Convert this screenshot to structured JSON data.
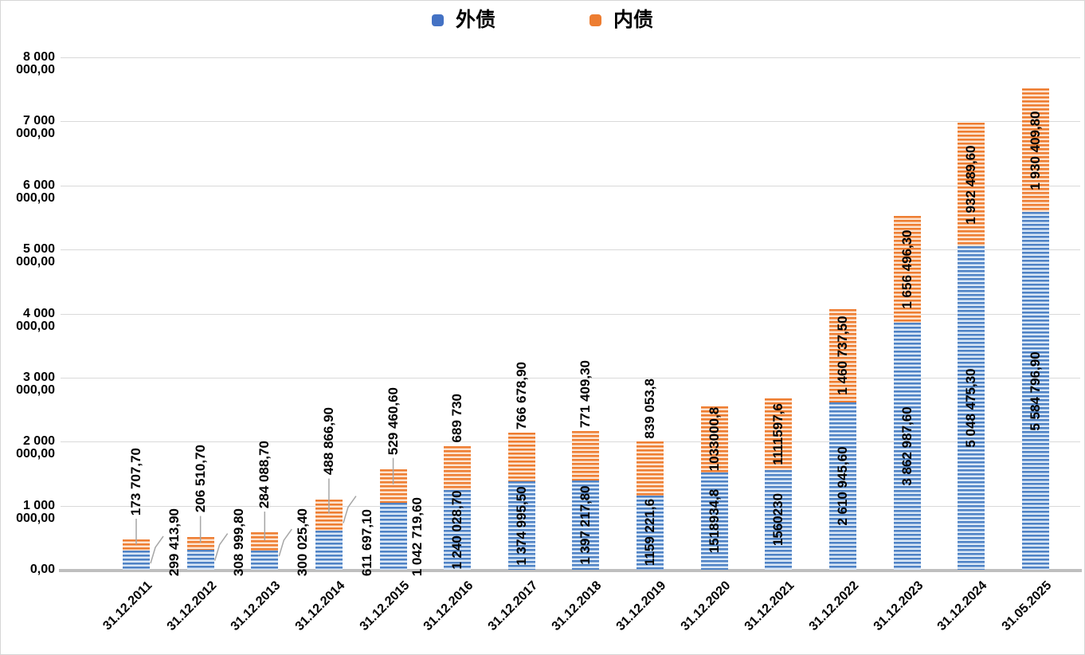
{
  "chart_data": {
    "type": "bar",
    "stacked": true,
    "title": "",
    "legend_position": "top",
    "grid": true,
    "categories": [
      "31.12.2011",
      "31.12.2012",
      "31.12.2013",
      "31.12.2014",
      "31.12.2015",
      "31.12.2016",
      "31.12.2017",
      "31.12.2018",
      "31.12.2019",
      "31.12.2020",
      "31.12.2021",
      "31.12.2022",
      "31.12.2023",
      "31.12.2024",
      "31.05.2025"
    ],
    "series": [
      {
        "name": "外债",
        "color": "#4472C4",
        "stripe_light_color": "#DBE8F6",
        "values": [
          299413.9,
          308999.8,
          300025.4,
          611697.1,
          1042719.6,
          1240028.7,
          1374995.5,
          1397217.8,
          1159221.6,
          1518934.8,
          1560230,
          2610945.6,
          3862987.6,
          5048475.3,
          5584796.9
        ],
        "data_labels": [
          "299 413,90",
          "308 999,80",
          "300 025,40",
          "611 697,10",
          "1 042 719,60",
          "1 240 028,70",
          "1 374 995,50",
          "1 397 217,80",
          "1159 221,6",
          "1518934,8",
          "1560230",
          "2 610 945,60",
          "3 862 987,60",
          "5 048 475,30",
          "5 584 796,90"
        ],
        "label_placement": [
          "outside-leader",
          "outside-leader",
          "outside-leader",
          "outside-leader",
          "outside",
          "inside",
          "inside",
          "inside",
          "inside",
          "inside",
          "inside",
          "inside",
          "inside",
          "inside",
          "inside"
        ]
      },
      {
        "name": "内债",
        "color": "#ED7D31",
        "stripe_light_color": "#FCE4D1",
        "values": [
          173707.7,
          206510.7,
          284088.7,
          488866.9,
          529460.6,
          689730,
          766678.9,
          771409.3,
          839053.8,
          1033000.8,
          1111597.6,
          1460737.5,
          1656496.3,
          1932489.6,
          1930409.8
        ],
        "data_labels": [
          "173 707,70",
          "206 510,70",
          "284 088,70",
          "488 866,90",
          "529 460,60",
          "689 730",
          "766 678,90",
          "771 409,30",
          "839 053,8",
          "1033000,8",
          "1111597,6",
          "1 460 737,50",
          "1 656 496,30",
          "1 932 489,60",
          "1 930 409,80"
        ],
        "label_placement": [
          "above-leader",
          "above-leader",
          "above-leader",
          "above-leader",
          "above-leader-short",
          "above",
          "above",
          "above",
          "above",
          "inside",
          "inside",
          "inside",
          "inside",
          "inside",
          "inside"
        ]
      }
    ],
    "y_axis": {
      "min": 0,
      "max": 8000000,
      "tick_interval": 1000000,
      "tick_labels": [
        "0,00",
        "1 000 000,00",
        "2 000 000,00",
        "3 000 000,00",
        "4 000 000,00",
        "5 000 000,00",
        "6 000 000,00",
        "7 000 000,00",
        "8 000 000,00"
      ]
    },
    "colors": {
      "gridline": "#D9D9D9",
      "axis_line": "#BFBFBF",
      "leader_line": "#A6A6A6",
      "label_text": "#000000"
    }
  }
}
